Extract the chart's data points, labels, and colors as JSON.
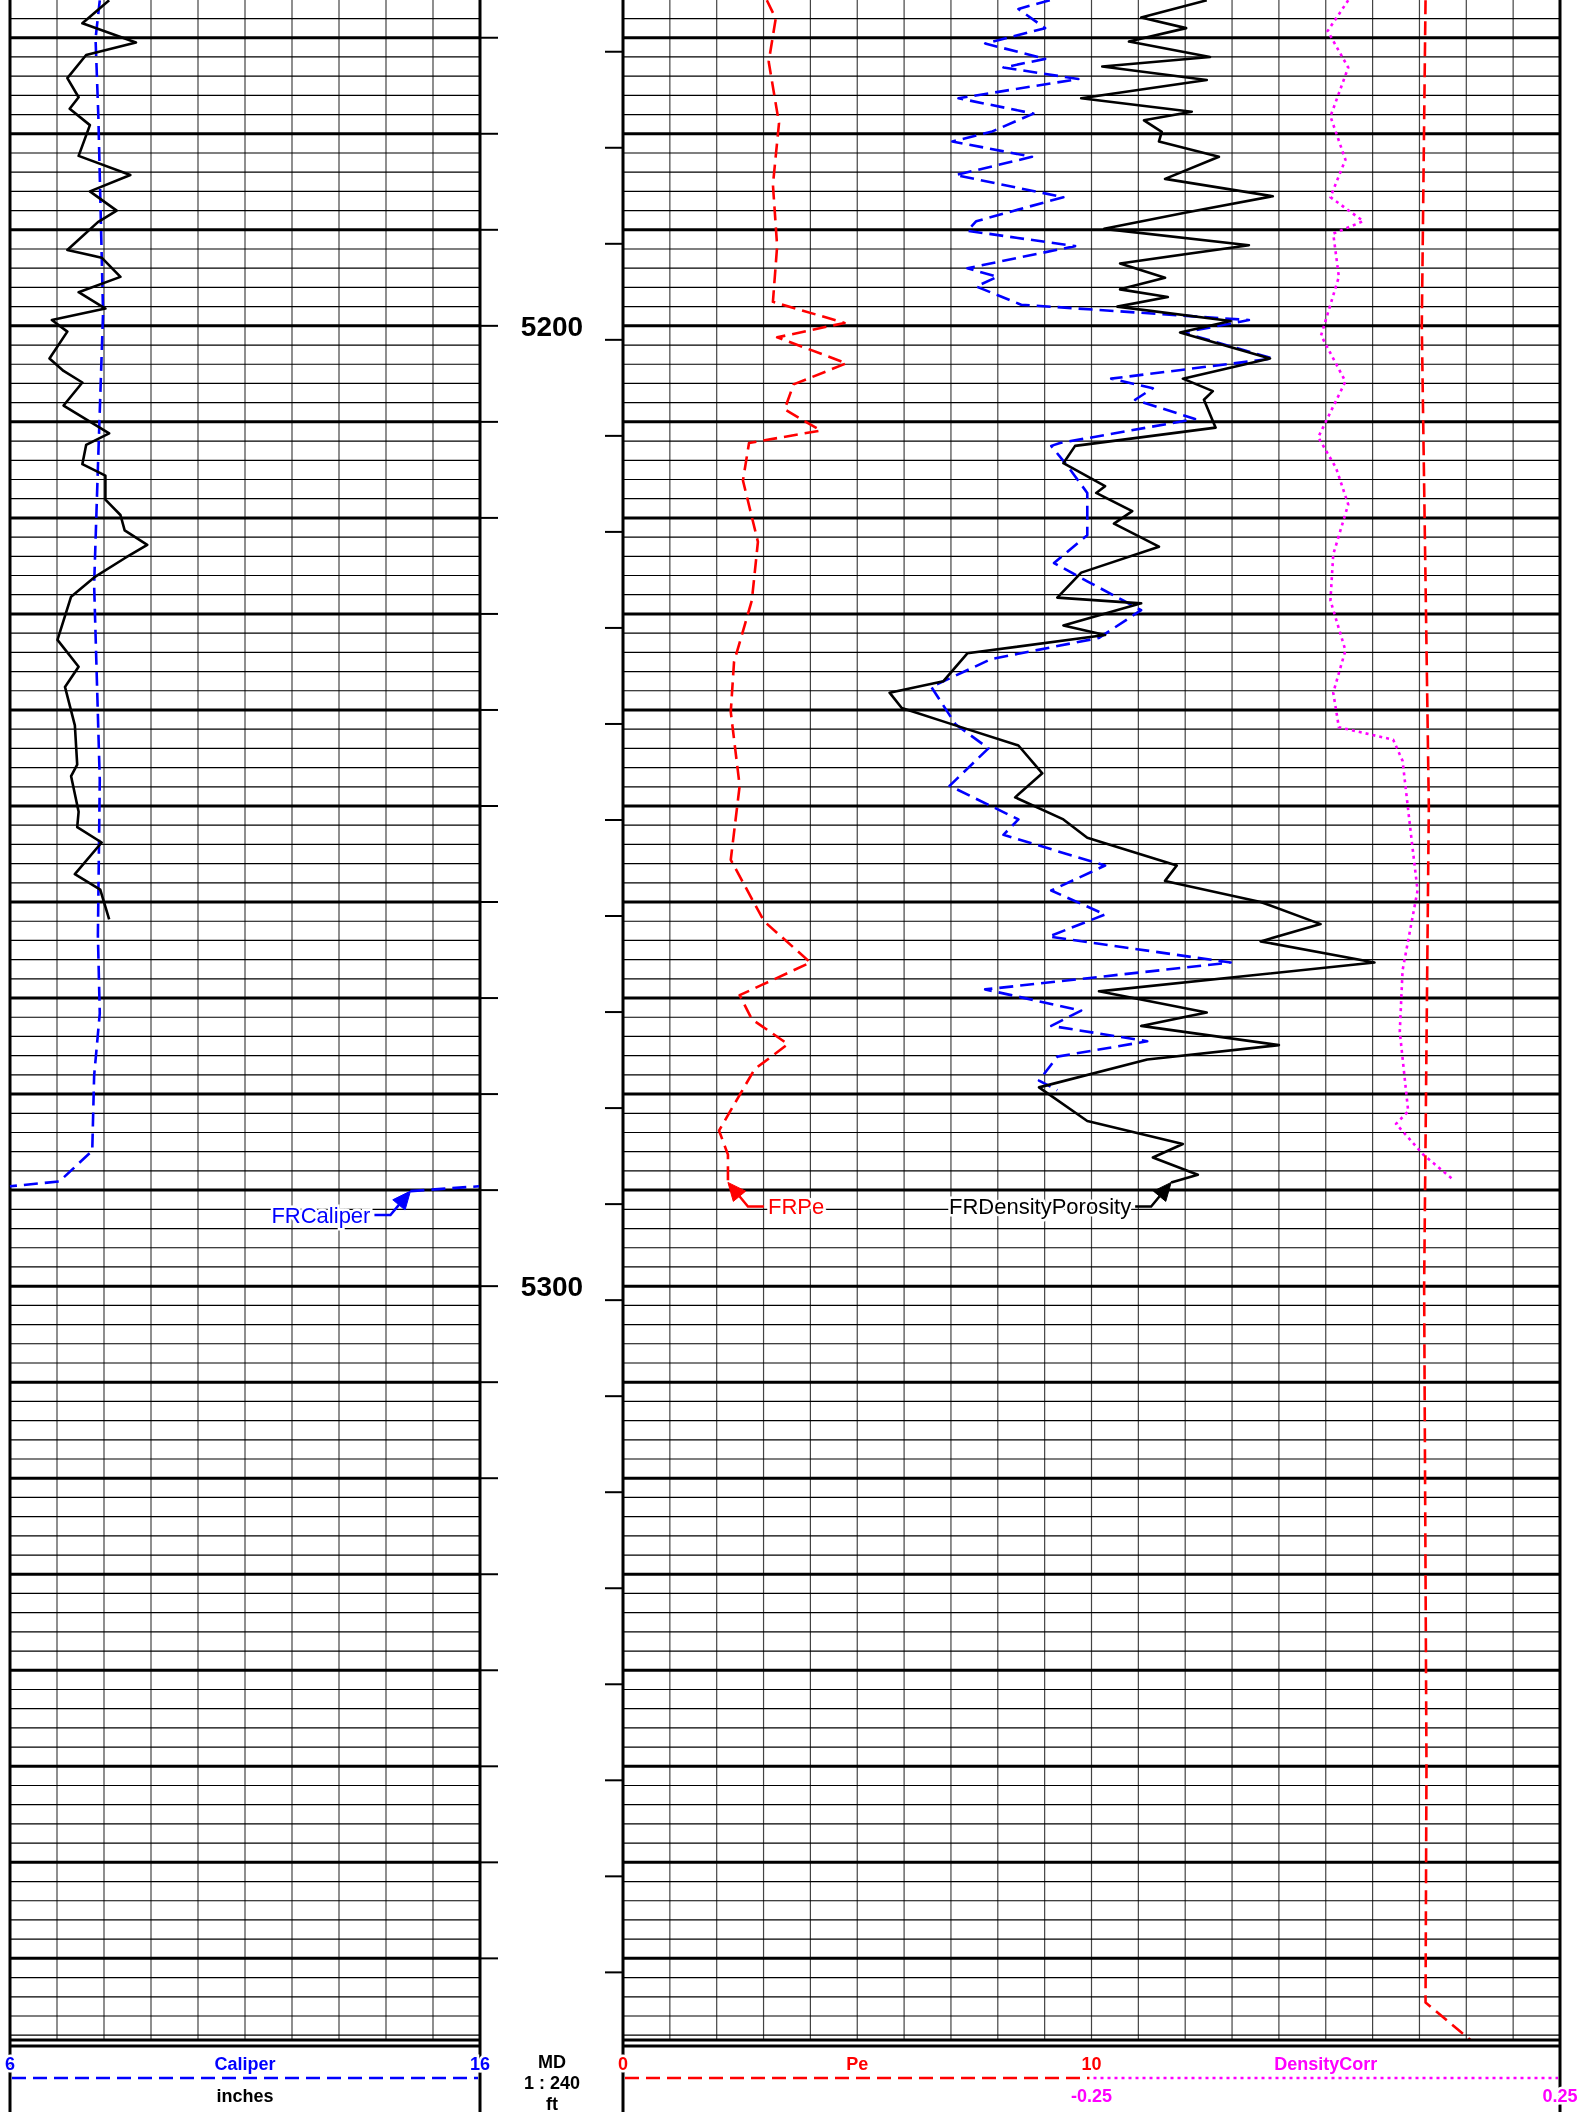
{
  "chart_data": [
    {
      "type": "line",
      "orientation": "horizontal",
      "ylabel": "MD",
      "annotations": [
        "1 : 240",
        "ft",
        {
          "text": "FRCaliper",
          "x": 14.52,
          "y": 5290.1
        }
      ],
      "xlabel": "inches",
      "xlim": [
        6,
        16
      ],
      "xticks": [
        6,
        16
      ],
      "ylim": [
        5378.5,
        5166.07
      ],
      "yticks": [
        {
          "value": 5170,
          "label": null
        },
        {
          "value": 5180,
          "label": null
        },
        {
          "value": 5190,
          "label": null
        },
        5200,
        {
          "value": 5210,
          "label": null
        },
        {
          "value": 5220,
          "label": null
        },
        {
          "value": 5230,
          "label": null
        },
        {
          "value": 5240,
          "label": null
        },
        {
          "value": 5250,
          "label": null
        },
        {
          "value": 5260,
          "label": null
        },
        {
          "value": 5270,
          "label": null
        },
        {
          "value": 5280,
          "label": null
        },
        {
          "value": 5290,
          "label": null
        },
        5300,
        {
          "value": 5310,
          "label": null
        },
        {
          "value": 5320,
          "label": null
        },
        {
          "value": 5330,
          "label": null
        },
        {
          "value": 5340,
          "label": null
        },
        {
          "value": 5350,
          "label": null
        },
        {
          "value": 5360,
          "label": null
        },
        {
          "value": 5370,
          "label": null
        }
      ],
      "grid": true,
      "legend": "bottom",
      "series": [
        {
          "name": "Caliper",
          "color": "#0000ff",
          "line_style": "dashed",
          "x": [
            5166.1,
            5170.1,
            5178.2,
            5198.6,
            5214.8,
            5227.0,
            5247.3,
            5263.5,
            5271.6,
            5278.1,
            5285.9,
            5289.1,
            5289.6,
            5289.8,
            5290.1,
            5289.6
          ],
          "values": [
            7.91,
            7.82,
            7.88,
            7.98,
            7.87,
            7.79,
            7.91,
            7.87,
            7.91,
            7.79,
            7.75,
            7.05,
            6.0,
            null,
            14.52,
            15.98
          ]
        },
        {
          "color": "#000000",
          "line_style": "solid",
          "x": [
            5166.1,
            5168.5,
            5170.5,
            5171.8,
            5174.2,
            5176.2,
            5177.4,
            5179.1,
            5182.3,
            5184.3,
            5186.0,
            5188.0,
            5189.2,
            5192.1,
            5192.9,
            5194.9,
            5196.5,
            5198.2,
            5199.4,
            5200.6,
            5203.4,
            5204.7,
            5205.9,
            5208.3,
            5211.2,
            5212.4,
            5214.4,
            5215.6,
            5218.1,
            5219.7,
            5221.3,
            5222.8,
            5224.2,
            5226.2,
            5228.2,
            5232.7,
            5235.5,
            5237.6,
            5241.6,
            5245.7,
            5246.9,
            5250.6,
            5252.2,
            5253.8,
            5257.1,
            5258.7,
            5261.8
          ],
          "values": [
            8.11,
            7.54,
            8.68,
            7.62,
            7.22,
            7.46,
            7.27,
            7.7,
            7.46,
            8.56,
            7.7,
            8.27,
            7.87,
            7.22,
            7.95,
            8.35,
            7.46,
            8.03,
            6.89,
            7.22,
            6.84,
            7.14,
            7.54,
            7.14,
            8.11,
            7.62,
            7.54,
            8.03,
            8.03,
            8.35,
            8.44,
            8.92,
            8.44,
            7.79,
            7.3,
            7.01,
            7.46,
            7.17,
            7.38,
            7.43,
            7.3,
            7.46,
            7.43,
            7.95,
            7.38,
            7.92,
            8.11
          ]
        }
      ]
    },
    {
      "type": "line",
      "orientation": "horizontal",
      "annotations": [
        {
          "text": "FRPe",
          "x": 2.24,
          "y": 5289.2
        },
        {
          "text": "FRDensityPorosity",
          "x": 11.7,
          "y": 5289.2
        }
      ],
      "xlim": [
        0,
        20
      ],
      "xticks": [
        0,
        10
      ],
      "x2lim": [
        -0.75,
        0.25
      ],
      "x2ticks": [
        -0.25,
        0.25
      ],
      "ylim": [
        5378.5,
        5166.07
      ],
      "yticks": [
        5170,
        5180,
        5190,
        5200,
        5210,
        5220,
        5230,
        5240,
        5250,
        5260,
        5270,
        5280,
        5290,
        5300,
        5310,
        5320,
        5330,
        5340,
        5350,
        5360,
        5370
      ],
      "tick_labels": "x",
      "grid": true,
      "legend": "bottom",
      "series": [
        {
          "name": "Pe",
          "color": "#ff0000",
          "line_style": "dashed",
          "x": [
            5166.1,
            5168.0,
            5172.5,
            5178.9,
            5185.3,
            5191.7,
            5197.5,
            5199.7,
            5201.2,
            5203.9,
            5206.1,
            5208.7,
            5210.9,
            5212.2,
            5216.1,
            5222.5,
            5228.6,
            5235.0,
            5240.2,
            5247.9,
            5255.6,
            5262.0,
            5266.3,
            5269.7,
            5272.2,
            5274.8,
            5277.4,
            5283.8,
            5286.3,
            5289.2
          ],
          "values": [
            3.07,
            3.26,
            3.11,
            3.33,
            3.2,
            3.29,
            3.2,
            4.73,
            3.29,
            4.77,
            3.64,
            3.45,
            4.22,
            2.69,
            2.56,
            2.88,
            2.75,
            2.37,
            2.3,
            2.49,
            2.3,
            3.01,
            4.0,
            2.49,
            2.75,
            3.52,
            2.81,
            2.05,
            2.24,
            2.24
          ]
        },
        {
          "color": "#0000ff",
          "line_style": "dashed",
          "x": [
            5166.1,
            5167.0,
            5169.0,
            5170.6,
            5172.2,
            5173.1,
            5174.3,
            5176.3,
            5177.9,
            5179.8,
            5180.8,
            5182.4,
            5184.3,
            5186.6,
            5189.1,
            5190.1,
            5191.7,
            5194.0,
            5194.9,
            5195.9,
            5197.8,
            5199.4,
            5200.7,
            5203.4,
            5205.5,
            5206.5,
            5207.7,
            5209.7,
            5212.2,
            5212.5,
            5214.8,
            5217.4,
            5221.8,
            5224.7,
            5226.6,
            5229.6,
            5232.5,
            5234.7,
            5237.6,
            5241.5,
            5244.0,
            5247.9,
            5251.4,
            5253.0,
            5256.2,
            5258.8,
            5261.3,
            5263.6,
            5266.3,
            5269.1,
            5271.3,
            5272.9,
            5274.5,
            5276.1,
            5278.6,
            5279.6
          ],
          "values": [
            9.11,
            8.44,
            9.01,
            7.73,
            9.01,
            8.12,
            9.72,
            7.16,
            8.76,
            7.86,
            7.03,
            8.73,
            7.1,
            9.4,
            7.54,
            7.35,
            9.65,
            7.35,
            7.99,
            7.54,
            8.5,
            13.36,
            11.95,
            13.87,
            10.42,
            11.31,
            10.93,
            12.21,
            9.33,
            9.14,
            9.52,
            9.91,
            9.91,
            9.2,
            9.91,
            11.06,
            10.16,
            7.86,
            6.58,
            7.1,
            7.8,
            6.97,
            8.44,
            8.12,
            10.29,
            9.14,
            10.29,
            9.09,
            12.97,
            7.73,
            9.78,
            9.14,
            11.19,
            9.27,
            8.88,
            9.27
          ]
        },
        {
          "color": "#000000",
          "line_style": "solid",
          "x": [
            5166.1,
            5167.9,
            5169.0,
            5170.4,
            5172.0,
            5173.0,
            5174.4,
            5176.3,
            5177.7,
            5178.6,
            5179.8,
            5180.8,
            5182.4,
            5184.7,
            5186.5,
            5188.2,
            5189.9,
            5191.6,
            5193.5,
            5195.0,
            5196.2,
            5197.0,
            5198.0,
            5199.5,
            5200.7,
            5203.4,
            5205.5,
            5206.8,
            5207.7,
            5210.6,
            5212.5,
            5214.3,
            5216.7,
            5217.4,
            5219.3,
            5220.6,
            5223.0,
            5225.7,
            5228.3,
            5228.9,
            5231.2,
            5232.2,
            5234.1,
            5237.0,
            5238.2,
            5239.8,
            5241.5,
            5243.7,
            5246.6,
            5249.1,
            5251.4,
            5253.3,
            5256.2,
            5257.8,
            5260.0,
            5262.3,
            5264.1,
            5266.3,
            5269.3,
            5271.5,
            5272.9,
            5274.9,
            5276.4,
            5279.3,
            5282.8,
            5285.2,
            5286.6,
            5288.4,
            5289.2
          ],
          "values": [
            12.46,
            11.06,
            12.02,
            10.8,
            12.53,
            10.23,
            12.46,
            9.78,
            12.14,
            11.12,
            11.5,
            11.44,
            12.72,
            11.57,
            13.87,
            12.02,
            10.27,
            13.36,
            10.61,
            11.57,
            10.61,
            11.63,
            10.55,
            12.97,
            11.89,
            13.81,
            11.95,
            12.59,
            12.4,
            12.65,
            9.65,
            9.4,
            10.29,
            10.1,
            10.87,
            10.48,
            11.44,
            9.78,
            9.27,
            11.06,
            9.4,
            10.29,
            7.35,
            6.84,
            5.69,
            5.95,
            7.03,
            8.44,
            8.95,
            8.37,
            9.4,
            9.91,
            11.82,
            11.57,
            13.61,
            14.89,
            13.61,
            16.04,
            10.16,
            12.46,
            11.06,
            14.0,
            11.19,
            8.88,
            9.91,
            11.95,
            11.31,
            12.27,
            11.7
          ]
        },
        {
          "name": "DensityCorr",
          "axis": "x2",
          "color": "#ff00ff",
          "line_style": "dotted",
          "x": [
            5166.1,
            5169.3,
            5173.1,
            5178.2,
            5182.7,
            5186.6,
            5189.1,
            5190.4,
            5194.9,
            5201.0,
            5205.8,
            5211.6,
            5214.8,
            5218.6,
            5223.8,
            5228.6,
            5233.8,
            5238.2,
            5241.8,
            5243.1,
            5245.3,
            5253.0,
            5258.8,
            5267.1,
            5273.5,
            5281.8,
            5283.1,
            5286.3,
            5288.9
          ],
          "values": [
            0.024,
            0.002,
            0.024,
            0.005,
            0.021,
            0.005,
            0.04,
            0.008,
            0.014,
            -0.005,
            0.021,
            -0.008,
            0.011,
            0.024,
            0.008,
            0.005,
            0.021,
            0.008,
            0.014,
            0.072,
            0.082,
            0.091,
            0.098,
            0.082,
            0.079,
            0.088,
            0.075,
            0.104,
            0.136
          ]
        },
        {
          "color": "#ff0000",
          "line_style": "dashed",
          "x": [
            5166.1,
            5200.0,
            5250.0,
            5300.0,
            5350.0,
            5374.6,
            5378.5
          ],
          "values": [
            17.13,
            17.05,
            17.2,
            17.1,
            17.15,
            17.13,
            18.09
          ]
        }
      ]
    }
  ]
}
